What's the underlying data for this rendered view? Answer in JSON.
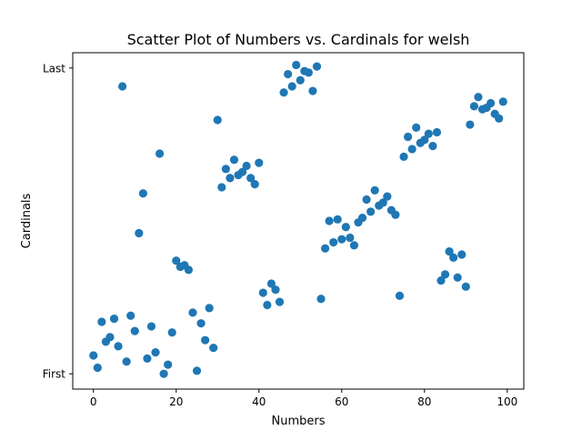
{
  "chart_data": {
    "type": "scatter",
    "title": "Scatter Plot of Numbers vs. Cardinals for welsh",
    "xlabel": "Numbers",
    "ylabel": "Cardinals",
    "xlim": [
      -5,
      104
    ],
    "ylim": [
      -0.05,
      1.05
    ],
    "x_ticks": [
      0,
      20,
      40,
      60,
      80,
      100
    ],
    "x_tick_labels": [
      "0",
      "20",
      "40",
      "60",
      "80",
      "100"
    ],
    "y_ticks": [
      0,
      1
    ],
    "y_tick_labels": [
      "First",
      "Last"
    ],
    "grid": false,
    "legend": "none",
    "marker_color": "#1f77b4",
    "series": [
      {
        "x": [
          0,
          1,
          2,
          3,
          4,
          5,
          6,
          7,
          8,
          9,
          10,
          11,
          12,
          13,
          14,
          15,
          16,
          17,
          18,
          19,
          20,
          21,
          22,
          23,
          24,
          25,
          26,
          27,
          28,
          29,
          30,
          31,
          32,
          33,
          34,
          35,
          36,
          37,
          38,
          39,
          40,
          41,
          42,
          43,
          44,
          45,
          46,
          47,
          48,
          49,
          50,
          51,
          52,
          53,
          54,
          55,
          56,
          57,
          58,
          59,
          60,
          61,
          62,
          63,
          64,
          65,
          66,
          67,
          68,
          69,
          70,
          71,
          72,
          73,
          74,
          75,
          76,
          77,
          78,
          79,
          80,
          81,
          82,
          83,
          84,
          85,
          86,
          87,
          88,
          89,
          90,
          91,
          92,
          93,
          94,
          95,
          96,
          97,
          98,
          99
        ],
        "y": [
          0.06,
          0.02,
          0.17,
          0.105,
          0.12,
          0.18,
          0.09,
          0.94,
          0.04,
          0.19,
          0.14,
          0.46,
          0.59,
          0.05,
          0.155,
          0.07,
          0.72,
          0.0,
          0.03,
          0.135,
          0.37,
          0.35,
          0.355,
          0.34,
          0.2,
          0.01,
          0.165,
          0.11,
          0.215,
          0.085,
          0.83,
          0.61,
          0.67,
          0.64,
          0.7,
          0.65,
          0.66,
          0.68,
          0.64,
          0.62,
          0.69,
          0.265,
          0.225,
          0.295,
          0.275,
          0.235,
          0.92,
          0.98,
          0.94,
          1.01,
          0.96,
          0.99,
          0.985,
          0.925,
          1.005,
          0.245,
          0.41,
          0.5,
          0.43,
          0.505,
          0.44,
          0.48,
          0.445,
          0.42,
          0.495,
          0.51,
          0.57,
          0.53,
          0.6,
          0.55,
          0.56,
          0.58,
          0.535,
          0.52,
          0.255,
          0.71,
          0.775,
          0.735,
          0.805,
          0.755,
          0.765,
          0.785,
          0.745,
          0.79,
          0.305,
          0.325,
          0.4,
          0.38,
          0.315,
          0.39,
          0.285,
          0.815,
          0.875,
          0.905,
          0.865,
          0.87,
          0.885,
          0.85,
          0.835,
          0.89
        ]
      }
    ]
  }
}
